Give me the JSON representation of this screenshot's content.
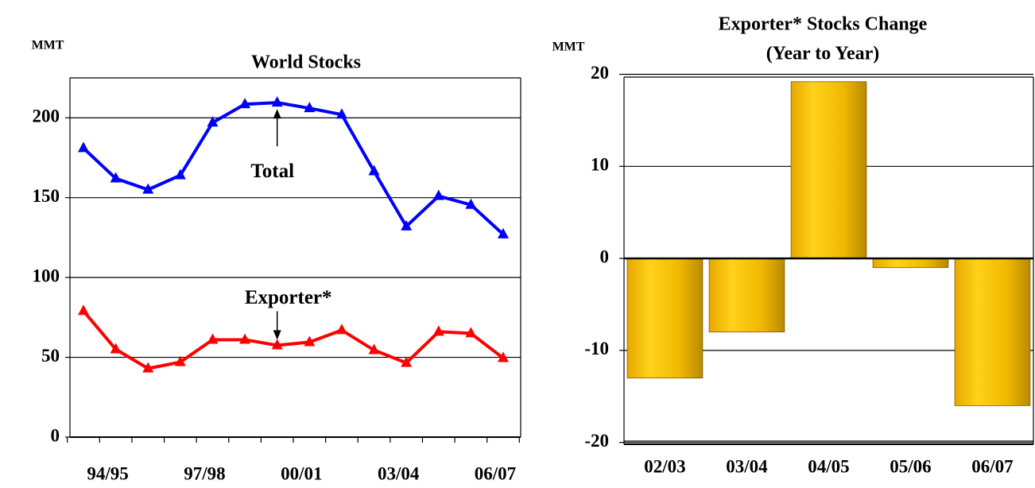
{
  "chart_data": [
    {
      "type": "line",
      "title": "World Stocks",
      "y_unit": "MMT",
      "categories": [
        null,
        "94/95",
        null,
        null,
        "97/98",
        null,
        null,
        "00/01",
        null,
        null,
        "03/04",
        null,
        null,
        "06/07"
      ],
      "series": [
        {
          "name": "Total",
          "color": "#0000ff",
          "values": [
            181,
            162,
            155,
            164,
            197,
            208.5,
            209.5,
            206,
            202,
            166.5,
            132,
            151,
            145.5,
            127
          ]
        },
        {
          "name": "Exporter*",
          "color": "#ff0000",
          "values": [
            79,
            55,
            43,
            47,
            61,
            61,
            57.5,
            59.5,
            67,
            54.5,
            46.5,
            66,
            65,
            49.5
          ]
        }
      ],
      "ylim": [
        0,
        225
      ],
      "yticks": [
        0,
        50,
        100,
        150,
        200
      ],
      "grid": true
    },
    {
      "type": "bar",
      "title": "Exporter* Stocks Change",
      "subtitle": "(Year to Year)",
      "y_unit": "MMT",
      "categories": [
        "02/03",
        "03/04",
        "04/05",
        "05/06",
        "06/07"
      ],
      "values": [
        -13,
        -8,
        19.2,
        -1,
        -16
      ],
      "color": "#f2b705",
      "ylim": [
        -20.2,
        19.7
      ],
      "yticks": [
        -20,
        -10,
        0,
        10,
        20
      ],
      "grid": true
    }
  ]
}
